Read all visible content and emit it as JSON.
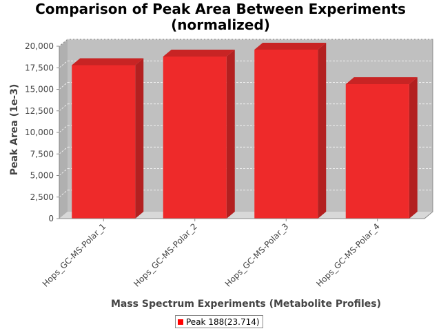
{
  "chart_data": {
    "type": "bar",
    "title_lines": [
      "Comparison of Peak Area Between Experiments",
      "(normalized)"
    ],
    "xlabel": "Mass Spectrum Experiments (Metabolite Profiles)",
    "ylabel": "Peak Area (1e-3)",
    "categories": [
      "Hops_GC-MS-Polar_1",
      "Hops_GC-MS-Polar_2",
      "Hops_GC-MS-Polar_3",
      "Hops_GC-MS-Polar_4"
    ],
    "series": [
      {
        "name": "Peak 188(23.714)",
        "values": [
          17800,
          18800,
          19600,
          15600
        ]
      }
    ],
    "ylim": [
      0,
      20000
    ],
    "yticks": [
      0,
      2500,
      5000,
      7500,
      10000,
      12500,
      15000,
      17500,
      20000
    ],
    "ytick_labels": [
      "0",
      "2,500",
      "5,000",
      "7,500",
      "10,000",
      "12,500",
      "15,000",
      "17,500",
      "20,000"
    ],
    "grid": true,
    "legend_position": "bottom",
    "colors": {
      "bar_front": "#ee2a2a",
      "bar_side": "#b32020",
      "bar_top": "#c82424",
      "plot_bg": "#c0c0c0",
      "floor": "#d8d8d8",
      "legend_swatch": "#ff0000"
    }
  }
}
